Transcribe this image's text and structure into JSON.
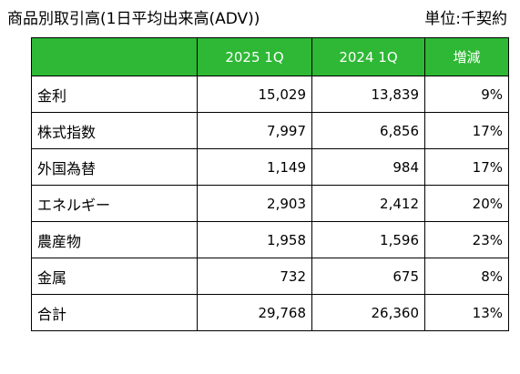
{
  "title": "商品別取引高(1日平均出来高(ADV))",
  "unit": "単位:千契約",
  "table": {
    "headers": [
      "",
      "2025 1Q",
      "2024 1Q",
      "増減"
    ],
    "rows": [
      {
        "name": "金利",
        "y2025": "15,029",
        "y2024": "13,839",
        "change": "9%"
      },
      {
        "name": "株式指数",
        "y2025": "7,997",
        "y2024": "6,856",
        "change": "17%"
      },
      {
        "name": "外国為替",
        "y2025": "1,149",
        "y2024": "984",
        "change": "17%"
      },
      {
        "name": "エネルギー",
        "y2025": "2,903",
        "y2024": "2,412",
        "change": "20%"
      },
      {
        "name": "農産物",
        "y2025": "1,958",
        "y2024": "1,596",
        "change": "23%"
      },
      {
        "name": "金属",
        "y2025": "732",
        "y2024": "675",
        "change": "8%"
      },
      {
        "name": "合計",
        "y2025": "29,768",
        "y2024": "26,360",
        "change": "13%"
      }
    ]
  },
  "colors": {
    "header_bg": "#2eb835",
    "header_text": "#ffffff",
    "border": "#000000"
  }
}
